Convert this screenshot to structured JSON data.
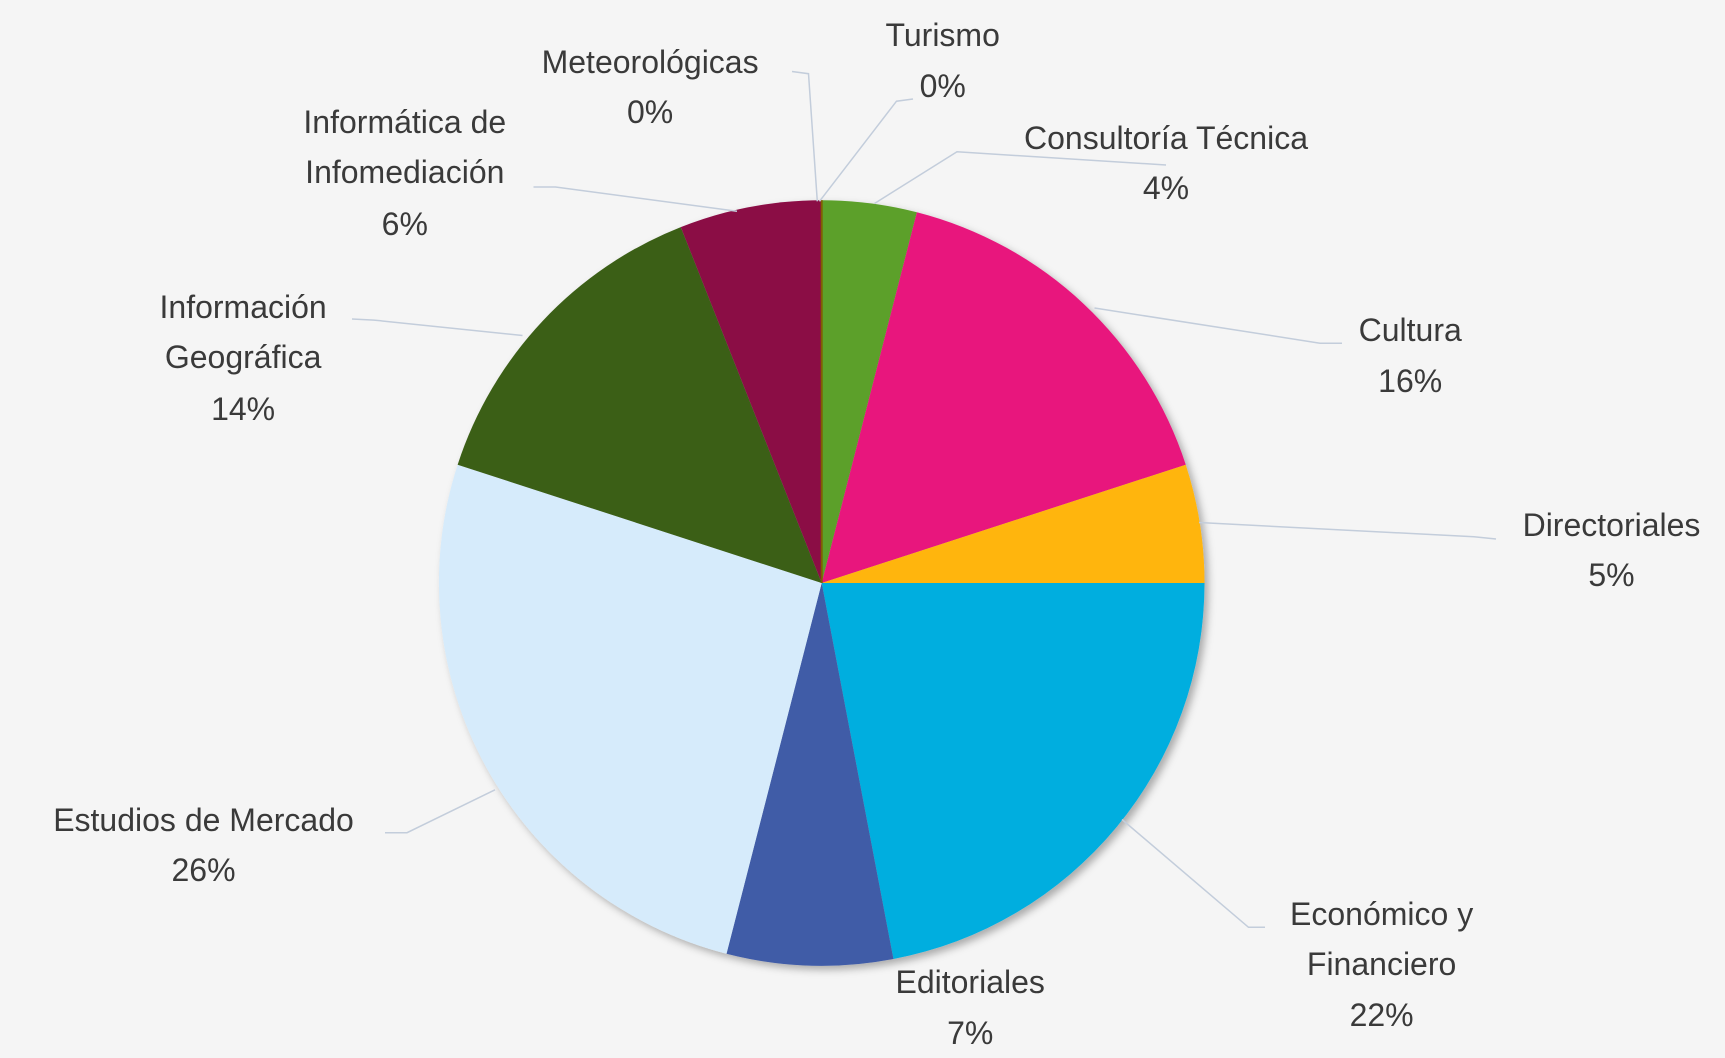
{
  "chart_data": {
    "type": "pie",
    "categories": [
      "Turismo",
      "Consultoría Técnica",
      "Cultura",
      "Directoriales",
      "Económico y Financiero",
      "Editoriales",
      "Estudios de Mercado",
      "Información Geográfica",
      "Informática de Infomediación",
      "Meteorológicas"
    ],
    "values": [
      0,
      4,
      16,
      5,
      22,
      7,
      26,
      14,
      6,
      0
    ],
    "value_labels": [
      "0%",
      "4%",
      "16%",
      "5%",
      "22%",
      "7%",
      "26%",
      "14%",
      "6%",
      "0%"
    ],
    "colors": [
      "#c55a11",
      "#5ba02c",
      "#e8177d",
      "#ffb50a",
      "#00aedf",
      "#3f5ba7",
      "#d6ebfb",
      "#3b5e17",
      "#8b0b45",
      "#7f6000"
    ]
  }
}
